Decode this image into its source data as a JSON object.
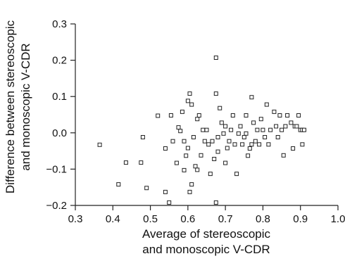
{
  "chart_data": {
    "type": "scatter",
    "title": "",
    "xlabel_lines": [
      "Average of stereoscopic",
      "and monoscopic V-CDR"
    ],
    "ylabel_lines": [
      "Difference between stereoscopic",
      "and monoscopic V-CDR"
    ],
    "xlim": [
      0.3,
      1.0
    ],
    "ylim": [
      -0.2,
      0.3
    ],
    "xticks": [
      0.3,
      0.4,
      0.5,
      0.6,
      0.7,
      0.8,
      0.9,
      1.0
    ],
    "xtick_labels": [
      "0.3",
      "0.4",
      "0.5",
      "0.6",
      "0.7",
      "0.8",
      "0.9",
      "1.0"
    ],
    "yticks": [
      -0.2,
      -0.1,
      0.0,
      0.1,
      0.2,
      0.3
    ],
    "ytick_labels": [
      "−0.2",
      "−0.1",
      "0.0",
      "0.1",
      "0.2",
      "0.3"
    ],
    "grid": false,
    "marker": "open-square",
    "colors": {
      "marker": "#222222",
      "axis": "#222222"
    },
    "series": [
      {
        "points": [
          [
            0.365,
            -0.033
          ],
          [
            0.415,
            -0.142
          ],
          [
            0.435,
            -0.082
          ],
          [
            0.475,
            -0.082
          ],
          [
            0.48,
            -0.012
          ],
          [
            0.49,
            -0.152
          ],
          [
            0.52,
            0.047
          ],
          [
            0.54,
            -0.163
          ],
          [
            0.54,
            -0.043
          ],
          [
            0.55,
            -0.192
          ],
          [
            0.555,
            0.048
          ],
          [
            0.56,
            -0.023
          ],
          [
            0.57,
            -0.083
          ],
          [
            0.575,
            0.015
          ],
          [
            0.58,
            0.005
          ],
          [
            0.585,
            0.058
          ],
          [
            0.59,
            -0.103
          ],
          [
            0.59,
            -0.023
          ],
          [
            0.595,
            -0.063
          ],
          [
            0.6,
            0.088
          ],
          [
            0.6,
            -0.042
          ],
          [
            0.605,
            0.108
          ],
          [
            0.605,
            -0.163
          ],
          [
            0.61,
            0.078
          ],
          [
            0.61,
            -0.142
          ],
          [
            0.615,
            -0.012
          ],
          [
            0.62,
            -0.092
          ],
          [
            0.625,
            0.038
          ],
          [
            0.625,
            -0.102
          ],
          [
            0.63,
            0.048
          ],
          [
            0.635,
            -0.062
          ],
          [
            0.64,
            0.008
          ],
          [
            0.645,
            -0.023
          ],
          [
            0.65,
            0.008
          ],
          [
            0.655,
            -0.032
          ],
          [
            0.66,
            -0.113
          ],
          [
            0.665,
            -0.023
          ],
          [
            0.67,
            -0.072
          ],
          [
            0.675,
            -0.192
          ],
          [
            0.675,
            0.207
          ],
          [
            0.675,
            0.108
          ],
          [
            0.68,
            -0.052
          ],
          [
            0.68,
            -0.012
          ],
          [
            0.685,
            0.068
          ],
          [
            0.69,
            0.028
          ],
          [
            0.695,
            -0.002
          ],
          [
            0.7,
            -0.083
          ],
          [
            0.7,
            0.018
          ],
          [
            0.705,
            -0.042
          ],
          [
            0.71,
            -0.023
          ],
          [
            0.715,
            0.008
          ],
          [
            0.72,
            0.048
          ],
          [
            0.725,
            -0.032
          ],
          [
            0.73,
            -0.113
          ],
          [
            0.735,
            -0.002
          ],
          [
            0.74,
            0.018
          ],
          [
            0.745,
            -0.032
          ],
          [
            0.75,
            -0.012
          ],
          [
            0.755,
            0.048
          ],
          [
            0.755,
            -0.002
          ],
          [
            0.76,
            -0.063
          ],
          [
            0.765,
            -0.043
          ],
          [
            0.77,
            0.098
          ],
          [
            0.77,
            -0.032
          ],
          [
            0.775,
            0.028
          ],
          [
            0.78,
            -0.023
          ],
          [
            0.785,
            0.008
          ],
          [
            0.79,
            -0.032
          ],
          [
            0.795,
            0.038
          ],
          [
            0.8,
            0.008
          ],
          [
            0.805,
            -0.012
          ],
          [
            0.81,
            0.078
          ],
          [
            0.815,
            -0.032
          ],
          [
            0.82,
            0.008
          ],
          [
            0.83,
            0.058
          ],
          [
            0.835,
            0.018
          ],
          [
            0.84,
            -0.012
          ],
          [
            0.845,
            0.048
          ],
          [
            0.85,
            0.008
          ],
          [
            0.855,
            -0.062
          ],
          [
            0.86,
            0.018
          ],
          [
            0.865,
            0.048
          ],
          [
            0.875,
            0.028
          ],
          [
            0.88,
            -0.043
          ],
          [
            0.885,
            0.018
          ],
          [
            0.89,
            0.018
          ],
          [
            0.895,
            0.048
          ],
          [
            0.9,
            0.008
          ],
          [
            0.905,
            0.008
          ],
          [
            0.905,
            -0.032
          ],
          [
            0.91,
            0.008
          ]
        ]
      }
    ]
  }
}
